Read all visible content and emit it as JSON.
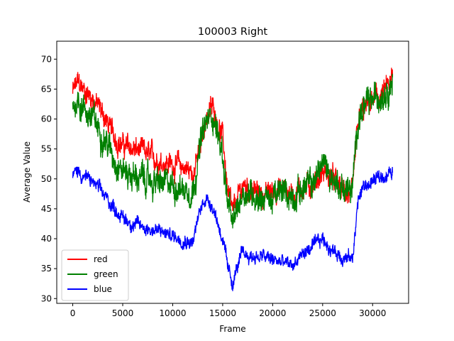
{
  "chart_data": {
    "type": "line",
    "title": "100003 Right",
    "xlabel": "Frame",
    "ylabel": "Average Value",
    "xlim": [
      -1600,
      33600
    ],
    "ylim": [
      29.2,
      73.0
    ],
    "xticks": [
      0,
      5000,
      10000,
      15000,
      20000,
      25000,
      30000
    ],
    "yticks": [
      30,
      35,
      40,
      45,
      50,
      55,
      60,
      65,
      70
    ],
    "legend": {
      "placement": "lower-left"
    },
    "series": [
      {
        "name": "red",
        "color": "#ff0000",
        "x": [
          0,
          500,
          1000,
          2000,
          3000,
          4000,
          5000,
          6000,
          7000,
          8000,
          9000,
          10000,
          11000,
          12000,
          12800,
          13300,
          14000,
          15000,
          15500,
          16000,
          16500,
          17000,
          18000,
          19000,
          20000,
          21000,
          22000,
          23000,
          24000,
          25000,
          26000,
          27000,
          28000,
          28500,
          29000,
          30000,
          31000,
          32000
        ],
        "values": [
          64.5,
          66.0,
          65.0,
          63.5,
          61.0,
          57.5,
          55.5,
          55.0,
          54.5,
          53.5,
          53.0,
          52.5,
          52.0,
          51.0,
          55.0,
          60.0,
          62.0,
          57.0,
          48.0,
          44.0,
          46.5,
          49.0,
          48.0,
          47.0,
          48.0,
          48.5,
          47.5,
          48.5,
          49.0,
          51.0,
          50.0,
          48.0,
          47.0,
          59.0,
          61.0,
          63.0,
          64.0,
          66.5
        ],
        "amp": 1.6
      },
      {
        "name": "green",
        "color": "#008000",
        "x": [
          0,
          500,
          1000,
          2000,
          3000,
          4000,
          5000,
          6000,
          7000,
          8000,
          9000,
          10000,
          11000,
          12000,
          12800,
          13300,
          14000,
          15000,
          15500,
          16000,
          16500,
          17000,
          18000,
          19000,
          20000,
          21000,
          22000,
          23000,
          24000,
          25000,
          26000,
          27000,
          28000,
          28500,
          29000,
          30000,
          31000,
          32000
        ],
        "values": [
          62.0,
          63.5,
          62.0,
          60.0,
          57.5,
          54.0,
          51.5,
          50.5,
          50.0,
          49.5,
          49.0,
          49.0,
          48.5,
          48.0,
          56.0,
          59.0,
          61.0,
          54.0,
          46.0,
          42.0,
          45.0,
          48.0,
          47.5,
          47.0,
          46.5,
          48.0,
          47.0,
          48.5,
          49.0,
          53.0,
          50.0,
          48.5,
          48.0,
          60.0,
          61.5,
          63.0,
          64.5,
          66.5
        ],
        "amp": 2.0
      },
      {
        "name": "blue",
        "color": "#0000ff",
        "x": [
          0,
          500,
          1000,
          2000,
          3000,
          4000,
          5000,
          6000,
          7000,
          8000,
          9000,
          10000,
          11000,
          12000,
          12800,
          13300,
          14000,
          15000,
          15500,
          16000,
          16500,
          17000,
          18000,
          19000,
          20000,
          21000,
          22000,
          23000,
          24000,
          25000,
          26000,
          27000,
          28000,
          28500,
          29000,
          30000,
          31000,
          32000
        ],
        "values": [
          50.5,
          51.5,
          50.5,
          49.5,
          47.5,
          45.5,
          43.5,
          42.5,
          42.0,
          41.5,
          41.0,
          40.5,
          40.0,
          39.5,
          45.0,
          47.0,
          45.5,
          40.0,
          35.0,
          32.5,
          35.5,
          37.5,
          37.0,
          37.0,
          36.5,
          36.0,
          35.5,
          37.5,
          38.5,
          40.0,
          38.0,
          37.0,
          36.5,
          46.0,
          48.5,
          49.5,
          50.5,
          51.0
        ],
        "amp": 1.0
      }
    ]
  }
}
